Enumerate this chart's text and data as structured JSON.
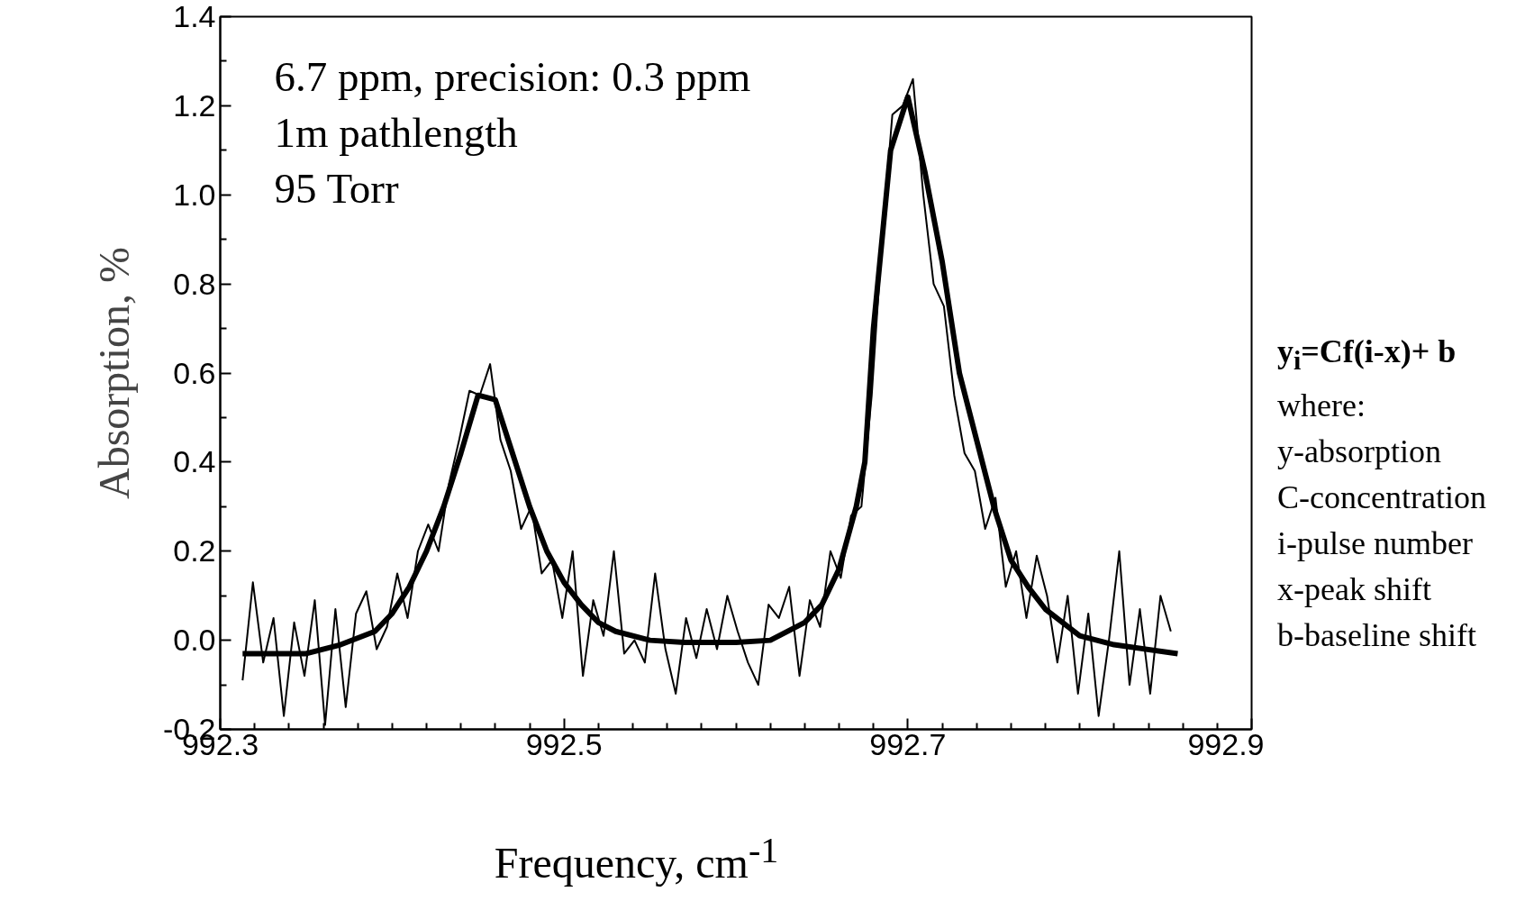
{
  "chart_data": {
    "type": "line",
    "xlabel": "Frequency, cm$^{-1}$",
    "ylabel": "Absorption, %",
    "xlim": [
      992.3,
      992.9
    ],
    "xticks": [
      992.3,
      992.5,
      992.7,
      992.9
    ],
    "ylim": [
      -0.2,
      1.4
    ],
    "yticks": [
      {
        "value": -0.2,
        "label": "-0.2"
      },
      {
        "value": 0,
        "label": "0.0"
      },
      {
        "value": 0.2,
        "label": "0.2"
      },
      {
        "value": 0.4,
        "label": "0.4"
      },
      {
        "value": 0.6,
        "label": "0.6"
      },
      {
        "value": 0.8,
        "label": "0.8"
      },
      {
        "value": 1.0,
        "label": "1.0"
      },
      {
        "value": 1.2,
        "label": "1.2"
      },
      {
        "value": 1.4,
        "label": "1.4"
      }
    ],
    "grid": false,
    "marker": "none",
    "line_style": "solid",
    "annotations": [
      "6.7 ppm, precision: 0.3 ppm",
      "1m pathlength",
      "95 Torr",
      "y$_{i}$=Cf(i-x)+ b",
      "where:",
      "y-absorption",
      "C-concentration",
      "i-pulse number",
      "x-peak shift",
      "b-baseline shift"
    ],
    "series": [
      {
        "color": "#000000",
        "x": [
          992.313,
          992.319,
          992.325,
          992.331,
          992.337,
          992.343,
          992.349,
          992.355,
          992.361,
          992.367,
          992.373,
          992.379,
          992.385,
          992.391,
          992.397,
          992.403,
          992.409,
          992.415,
          992.421,
          992.427,
          992.433,
          992.439,
          992.445,
          992.451,
          992.457,
          992.463,
          992.469,
          992.475,
          992.481,
          992.487,
          992.493,
          992.499,
          992.505,
          992.511,
          992.517,
          992.523,
          992.529,
          992.535,
          992.541,
          992.547,
          992.553,
          992.559,
          992.565,
          992.571,
          992.577,
          992.583,
          992.589,
          992.595,
          992.601,
          992.607,
          992.613,
          992.619,
          992.625,
          992.631,
          992.637,
          992.643,
          992.649,
          992.655,
          992.661,
          992.667,
          992.673,
          992.679,
          992.685,
          992.691,
          992.697,
          992.703,
          992.709,
          992.715,
          992.721,
          992.727,
          992.733,
          992.739,
          992.745,
          992.751,
          992.757,
          992.763,
          992.769,
          992.775,
          992.781,
          992.787,
          992.793,
          992.799,
          992.805,
          992.811,
          992.817,
          992.823,
          992.829,
          992.835,
          992.841,
          992.847,
          992.853
        ],
        "values": [
          -0.09,
          0.13,
          -0.05,
          0.05,
          -0.17,
          0.04,
          -0.08,
          0.09,
          -0.19,
          0.07,
          -0.15,
          0.06,
          0.11,
          -0.02,
          0.03,
          0.15,
          0.05,
          0.2,
          0.26,
          0.2,
          0.35,
          0.45,
          0.56,
          0.55,
          0.62,
          0.45,
          0.38,
          0.25,
          0.3,
          0.15,
          0.18,
          0.05,
          0.2,
          -0.08,
          0.09,
          0.01,
          0.2,
          -0.03,
          0.0,
          -0.05,
          0.15,
          -0.02,
          -0.12,
          0.05,
          -0.04,
          0.07,
          -0.02,
          0.1,
          0.02,
          -0.05,
          -0.1,
          0.08,
          0.05,
          0.12,
          -0.08,
          0.09,
          0.03,
          0.2,
          0.14,
          0.28,
          0.3,
          0.55,
          0.9,
          1.18,
          1.2,
          1.26,
          1.0,
          0.8,
          0.75,
          0.55,
          0.42,
          0.38,
          0.25,
          0.32,
          0.12,
          0.2,
          0.05,
          0.19,
          0.1,
          -0.05,
          0.1,
          -0.12,
          0.06,
          -0.17,
          0.0,
          0.2,
          -0.1,
          0.07,
          -0.12,
          0.1,
          0.02
        ]
      },
      {
        "color": "#000000",
        "x": [
          992.313,
          992.33,
          992.35,
          992.37,
          992.39,
          992.4,
          992.41,
          992.42,
          992.43,
          992.44,
          992.45,
          992.46,
          992.47,
          992.48,
          992.49,
          992.5,
          992.51,
          992.52,
          992.53,
          992.55,
          992.57,
          992.6,
          992.62,
          992.64,
          992.65,
          992.66,
          992.67,
          992.675,
          992.68,
          992.69,
          992.7,
          992.71,
          992.72,
          992.73,
          992.74,
          992.75,
          992.76,
          992.77,
          992.78,
          992.79,
          992.8,
          992.82,
          992.857
        ],
        "values": [
          -0.03,
          -0.03,
          -0.03,
          -0.01,
          0.02,
          0.06,
          0.12,
          0.2,
          0.3,
          0.42,
          0.55,
          0.54,
          0.42,
          0.3,
          0.2,
          0.13,
          0.08,
          0.04,
          0.02,
          0.0,
          -0.005,
          -0.005,
          0.0,
          0.04,
          0.08,
          0.16,
          0.3,
          0.4,
          0.7,
          1.1,
          1.22,
          1.05,
          0.85,
          0.6,
          0.45,
          0.3,
          0.18,
          0.12,
          0.07,
          0.04,
          0.01,
          -0.01,
          -0.03
        ]
      }
    ]
  }
}
